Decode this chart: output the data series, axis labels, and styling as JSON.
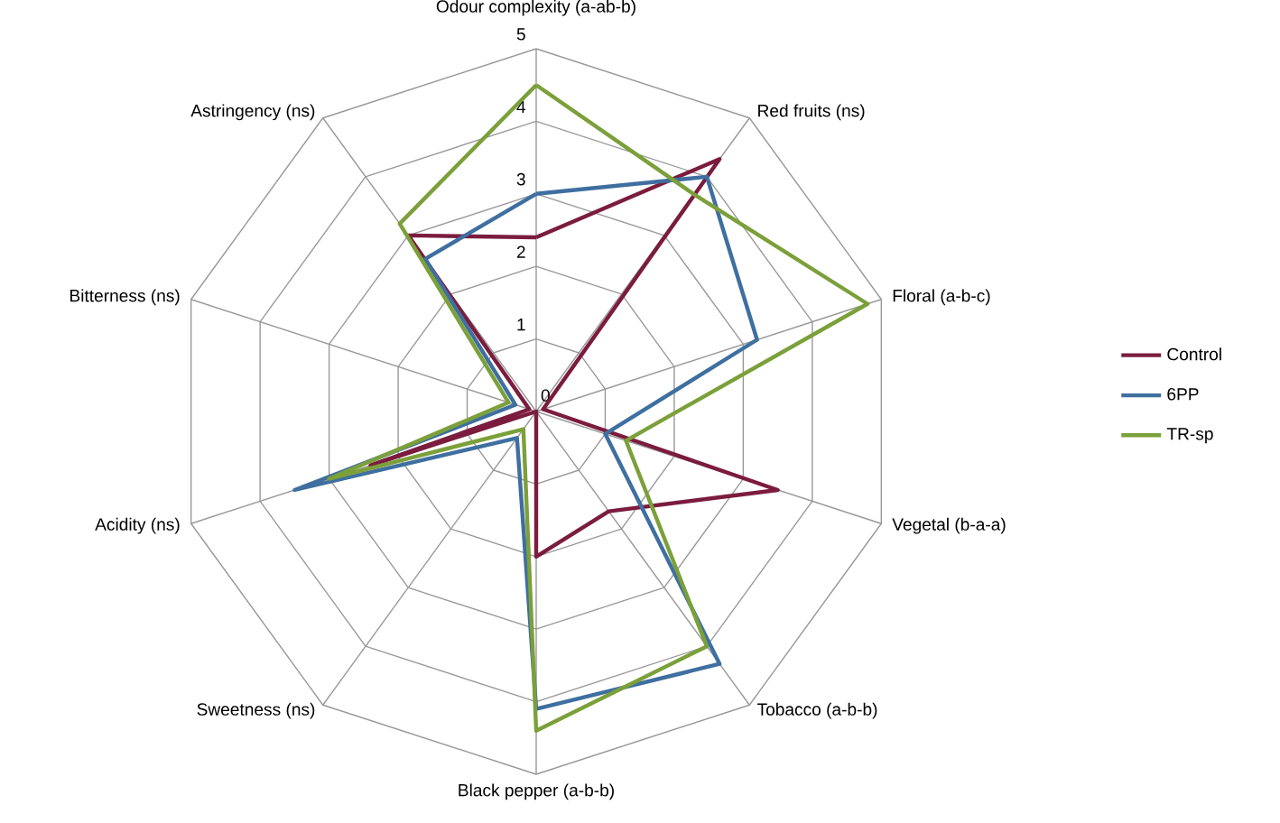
{
  "chart_data": {
    "type": "radar",
    "categories": [
      "Odour complexity (a-ab-b)",
      "Red fruits (ns)",
      "Floral (a-b-c)",
      "Vegetal (b-a-a)",
      "Tobacco (a-b-b)",
      "Black pepper (a-b-b)",
      "Sweetness (ns)",
      "Acidity (ns)",
      "Bitterness (ns)",
      "Astringency (ns)"
    ],
    "series": [
      {
        "name": "Control",
        "color": "#7b1c3e",
        "values": [
          2.4,
          4.3,
          0.1,
          3.5,
          1.7,
          2.0,
          0.0,
          2.4,
          0.1,
          3.0
        ]
      },
      {
        "name": "6PP",
        "color": "#3f6fa0",
        "values": [
          3.0,
          4.0,
          3.2,
          1.0,
          4.3,
          4.1,
          0.45,
          3.5,
          0.3,
          2.6
        ]
      },
      {
        "name": "TR-sp",
        "color": "#7ba03a",
        "values": [
          4.5,
          3.7,
          4.8,
          1.3,
          4.0,
          4.4,
          0.3,
          3.0,
          0.4,
          3.2
        ]
      }
    ],
    "ylim": [
      0,
      5
    ],
    "yticks": [
      0,
      1,
      2,
      3,
      4,
      5
    ],
    "grid": true,
    "legend": "right",
    "line_style": "solid",
    "marker": "none"
  }
}
